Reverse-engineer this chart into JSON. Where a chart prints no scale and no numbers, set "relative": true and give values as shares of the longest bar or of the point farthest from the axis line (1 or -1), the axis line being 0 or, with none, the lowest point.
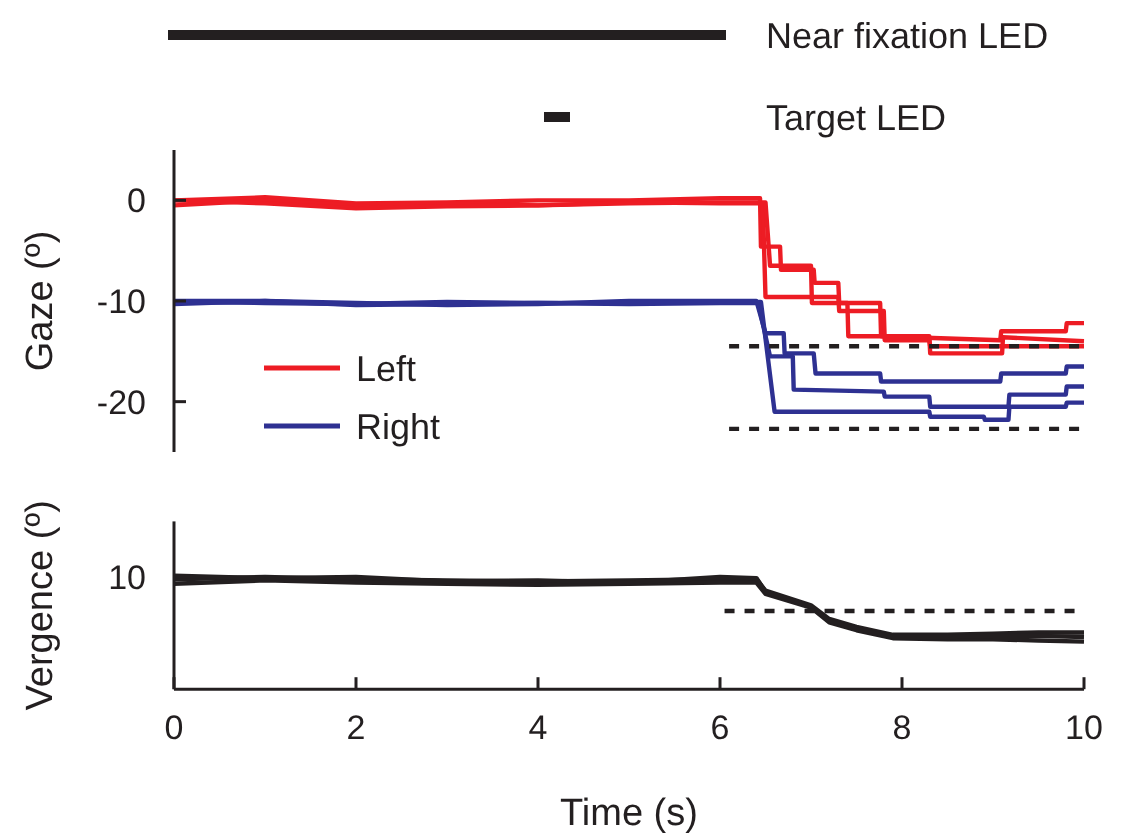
{
  "chart_data": [
    {
      "type": "line",
      "ylabel": "Gaze (º)",
      "xlim": [
        0,
        10
      ],
      "ylim": [
        -25,
        5
      ],
      "yticks": [
        -20,
        -10,
        0
      ],
      "tick_labels": "y",
      "legend": "bottom left",
      "annotations": [
        "Near fixation LED",
        "Target LED"
      ],
      "series": [
        {
          "name": "Left",
          "color": "#ed1c24",
          "x": [
            0,
            1,
            2,
            3,
            4,
            5,
            6,
            6.44,
            6.45,
            6.66,
            6.67,
            7.03,
            7.04,
            7.3,
            7.31,
            7.76,
            7.77,
            9.08,
            9.09,
            9.8,
            9.81,
            10
          ],
          "values": [
            0,
            0.3,
            -0.3,
            -0.2,
            0,
            0,
            0.2,
            0.2,
            -4.6,
            -4.6,
            -6.9,
            -6.9,
            -8.2,
            -8.2,
            -10.2,
            -10.2,
            -13.5,
            -13.9,
            -13,
            -13,
            -12.2,
            -12.2
          ]
        },
        {
          "color": "#ed1c24",
          "x": [
            0,
            1,
            2,
            3,
            4,
            5,
            6,
            6.47,
            6.5,
            7.3,
            7.31,
            7.8,
            7.81,
            8.3,
            8.31,
            10
          ],
          "values": [
            -0.5,
            0,
            -0.5,
            -0.3,
            -0.5,
            -0.2,
            -0.3,
            -0.3,
            -9.6,
            -9.6,
            -11,
            -11,
            -13.9,
            -13.9,
            -14.5,
            -14.5
          ]
        },
        {
          "color": "#ed1c24",
          "x": [
            0,
            1,
            2,
            3,
            4,
            5,
            6,
            6.5,
            6.55,
            7.0,
            7.01,
            7.4,
            7.41,
            8.3,
            8.31,
            9.1,
            9.11,
            10
          ],
          "values": [
            0,
            -0.3,
            -0.8,
            -0.6,
            -0.5,
            -0.3,
            -0.2,
            -0.2,
            -6.5,
            -6.5,
            -10.2,
            -10.2,
            -13.5,
            -13.5,
            -15.2,
            -15.2,
            -13.6,
            -14
          ]
        },
        {
          "name": "Right",
          "color": "#2e3192",
          "x": [
            0,
            1,
            2,
            3,
            4,
            5,
            6,
            6.4,
            6.5,
            6.7,
            6.71,
            7.03,
            7.05,
            7.76,
            7.77,
            9.08,
            9.09,
            9.8,
            9.81,
            10
          ],
          "values": [
            -10,
            -10,
            -10.2,
            -10.4,
            -10.3,
            -10,
            -10,
            -10,
            -13.2,
            -13.2,
            -15.2,
            -15.2,
            -17.2,
            -17.2,
            -18,
            -18,
            -17.2,
            -17.2,
            -16.5,
            -16.5
          ]
        },
        {
          "color": "#2e3192",
          "x": [
            0,
            1,
            2,
            3,
            4,
            5,
            6,
            6.42,
            6.55,
            6.8,
            6.81,
            7.8,
            7.81,
            8.3,
            8.31,
            9.17,
            9.18,
            9.8,
            9.81,
            10
          ],
          "values": [
            -10.3,
            -10,
            -10.4,
            -10.3,
            -10.2,
            -10.3,
            -10.2,
            -10.2,
            -15.5,
            -15.5,
            -18.8,
            -19,
            -19.5,
            -19.5,
            -20.5,
            -20.5,
            -19.3,
            -19.3,
            -18.5,
            -18.5
          ]
        },
        {
          "color": "#2e3192",
          "x": [
            0,
            1,
            2,
            3,
            4,
            5,
            6,
            6.45,
            6.6,
            8.3,
            8.31,
            8.9,
            8.91,
            9.17,
            9.18,
            9.8,
            9.81,
            10
          ],
          "values": [
            -10.1,
            -10.2,
            -10.3,
            -10.1,
            -10.2,
            -10.2,
            -10.1,
            -10.1,
            -21,
            -21,
            -21.5,
            -21.5,
            -21.8,
            -21.8,
            -20.5,
            -20.5,
            -20.1,
            -20.1
          ]
        },
        {
          "color": "#231f20",
          "line_style": "dashed",
          "x": [
            6.1,
            10
          ],
          "values": [
            -14.5,
            -14.5
          ]
        },
        {
          "color": "#231f20",
          "line_style": "dashed",
          "x": [
            6.1,
            10
          ],
          "values": [
            -22.7,
            -22.7
          ]
        }
      ]
    },
    {
      "type": "line",
      "xlabel": "Time (s)",
      "ylabel": "Vergence (º)",
      "xlim": [
        0,
        10
      ],
      "relative": true,
      "xticks": [
        0,
        2,
        4,
        6,
        8,
        10
      ],
      "annotations": [
        "10"
      ],
      "series": [
        {
          "color": "#231f20",
          "x": [
            0,
            1,
            2,
            3,
            4,
            5,
            6,
            6.4,
            6.5,
            7.0,
            7.2,
            7.5,
            7.9,
            8.5,
            9,
            9.5,
            10
          ],
          "values": [
            0.97,
            0.99,
            0.97,
            0.96,
            0.95,
            0.96,
            0.97,
            0.97,
            0.87,
            0.74,
            0.62,
            0.55,
            0.48,
            0.48,
            0.49,
            0.5,
            0.5
          ]
        },
        {
          "color": "#231f20",
          "x": [
            0,
            1,
            2,
            3,
            4,
            5,
            6,
            6.4,
            6.5,
            7.0,
            7.2,
            7.5,
            7.9,
            8.5,
            9,
            9.5,
            10
          ],
          "values": [
            0.93,
            0.96,
            0.94,
            0.93,
            0.92,
            0.93,
            0.94,
            0.94,
            0.84,
            0.72,
            0.59,
            0.52,
            0.45,
            0.44,
            0.44,
            0.43,
            0.42
          ]
        },
        {
          "color": "#231f20",
          "x": [
            0,
            1,
            2,
            3,
            4,
            5,
            6,
            6.4,
            6.5,
            7.0,
            7.2,
            7.5,
            7.9,
            8.5,
            9,
            9.5,
            10
          ],
          "values": [
            1,
            0.98,
            0.99,
            0.95,
            0.96,
            0.94,
            0.99,
            0.98,
            0.86,
            0.73,
            0.6,
            0.53,
            0.46,
            0.46,
            0.47,
            0.47,
            0.46
          ]
        },
        {
          "color": "#231f20",
          "line_style": "dashed",
          "x": [
            6.05,
            10
          ],
          "values": [
            0.69,
            0.69
          ]
        }
      ]
    }
  ]
}
